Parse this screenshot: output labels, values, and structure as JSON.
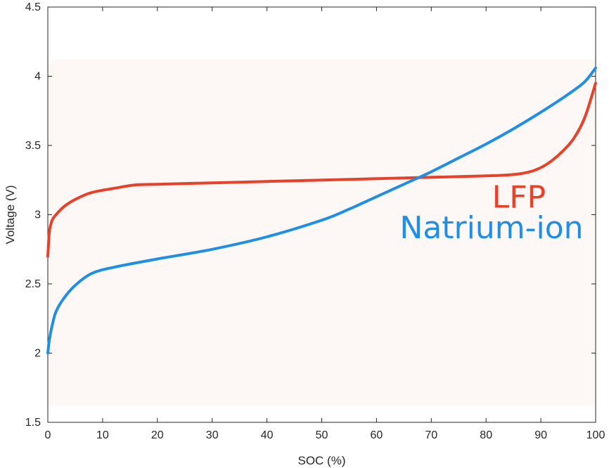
{
  "chart_data": {
    "type": "line",
    "xlabel": "SOC (%)",
    "ylabel": "Voltage (V)",
    "xlim": [
      0,
      100
    ],
    "ylim": [
      1.5,
      4.5
    ],
    "x_ticks": [
      0,
      10,
      20,
      30,
      40,
      50,
      60,
      70,
      80,
      90,
      100
    ],
    "y_ticks": [
      "1.5",
      "2",
      "2.5",
      "3",
      "3.5",
      "4",
      "4.5"
    ],
    "grid": false,
    "shaded_band": {
      "y_range": [
        1.62,
        4.12
      ],
      "color": "#fdf7f6"
    },
    "series": [
      {
        "name": "LFP",
        "color": "#e8412a",
        "x": [
          0,
          0.3,
          0.8,
          1.5,
          3,
          5,
          8,
          12,
          16,
          20,
          30,
          40,
          50,
          60,
          70,
          80,
          85,
          88,
          90,
          92,
          94,
          96,
          98,
          100
        ],
        "y": [
          2.7,
          2.88,
          2.96,
          3.0,
          3.06,
          3.11,
          3.16,
          3.19,
          3.215,
          3.22,
          3.23,
          3.24,
          3.25,
          3.26,
          3.27,
          3.28,
          3.29,
          3.31,
          3.34,
          3.39,
          3.46,
          3.55,
          3.7,
          3.95
        ]
      },
      {
        "name": "Natrium-ion",
        "color": "#1f8fe6",
        "x": [
          0,
          0.3,
          0.8,
          1.5,
          3,
          5,
          8,
          12,
          20,
          30,
          40,
          50,
          55,
          60,
          65,
          70,
          75,
          80,
          85,
          90,
          95,
          98,
          100
        ],
        "y": [
          2.0,
          2.1,
          2.2,
          2.3,
          2.4,
          2.49,
          2.575,
          2.62,
          2.68,
          2.75,
          2.84,
          2.96,
          3.04,
          3.13,
          3.22,
          3.31,
          3.41,
          3.51,
          3.62,
          3.74,
          3.87,
          3.96,
          4.06
        ]
      }
    ],
    "annotations": [
      {
        "text": "LFP",
        "color": "#e8412a",
        "x": 86,
        "y": 3.05
      },
      {
        "text": "Natrium-ion",
        "color": "#1f8fe6",
        "x": 81,
        "y": 2.83
      }
    ]
  }
}
